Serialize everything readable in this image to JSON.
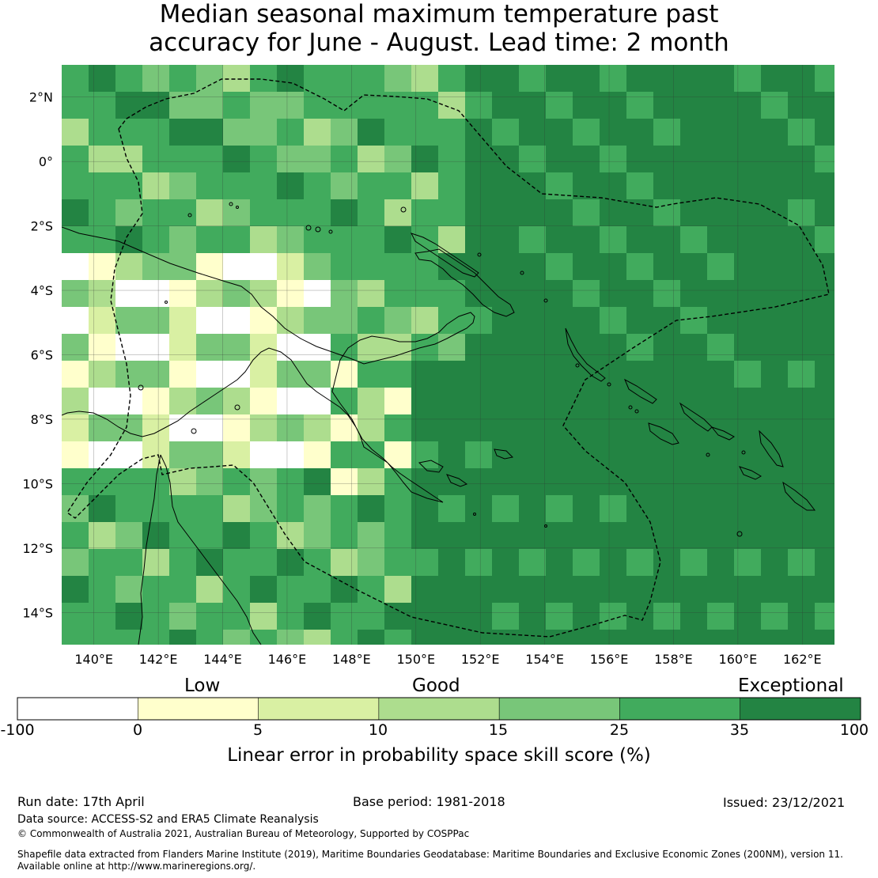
{
  "title": {
    "line1": "Median seasonal maximum temperature past",
    "line2": "accuracy for June - August. Lead time: 2 month"
  },
  "map": {
    "lon_labels": [
      "140°E",
      "142°E",
      "144°E",
      "146°E",
      "148°E",
      "150°E",
      "152°E",
      "154°E",
      "156°E",
      "158°E",
      "160°E",
      "162°E"
    ],
    "lat_labels": [
      "2°N",
      "0°",
      "2°S",
      "4°S",
      "6°S",
      "8°S",
      "10°S",
      "12°S",
      "14°S"
    ],
    "lon_range": [
      139,
      163
    ],
    "lat_range": [
      -15,
      3
    ],
    "grid_cell_deg": 0.8,
    "boundary_style": "dashed",
    "coastline_color": "#000000"
  },
  "colorbar": {
    "categories": [
      "Low",
      "Good",
      "Exceptional"
    ],
    "ticks": [
      "-100",
      "0",
      "5",
      "10",
      "15",
      "25",
      "35",
      "100"
    ],
    "colors": [
      "#ffffff",
      "#ffffcc",
      "#d9f0a3",
      "#addd8e",
      "#78c679",
      "#41ab5d",
      "#238443"
    ],
    "label": "Linear error in probability space skill score (%)"
  },
  "footer": {
    "run_date": "Run date: 17th April",
    "base_period": "Base period: 1981-2018",
    "issued": "Issued: 23/12/2021",
    "data_source": "Data source: ACCESS-S2 and ERA5 Climate Reanalysis",
    "copyright": "© Commonwealth of Australia 2021, Australian Bureau of Meteorology, Supported by COSPPac",
    "shapefile_line1": "Shapefile data extracted from Flanders Marine Institute (2019), Maritime Boundaries Geodatabase: Maritime Boundaries and Exclusive Economic Zones (200NM), version 11.",
    "shapefile_line2": "Available online at http://www.marineregions.org/."
  }
}
